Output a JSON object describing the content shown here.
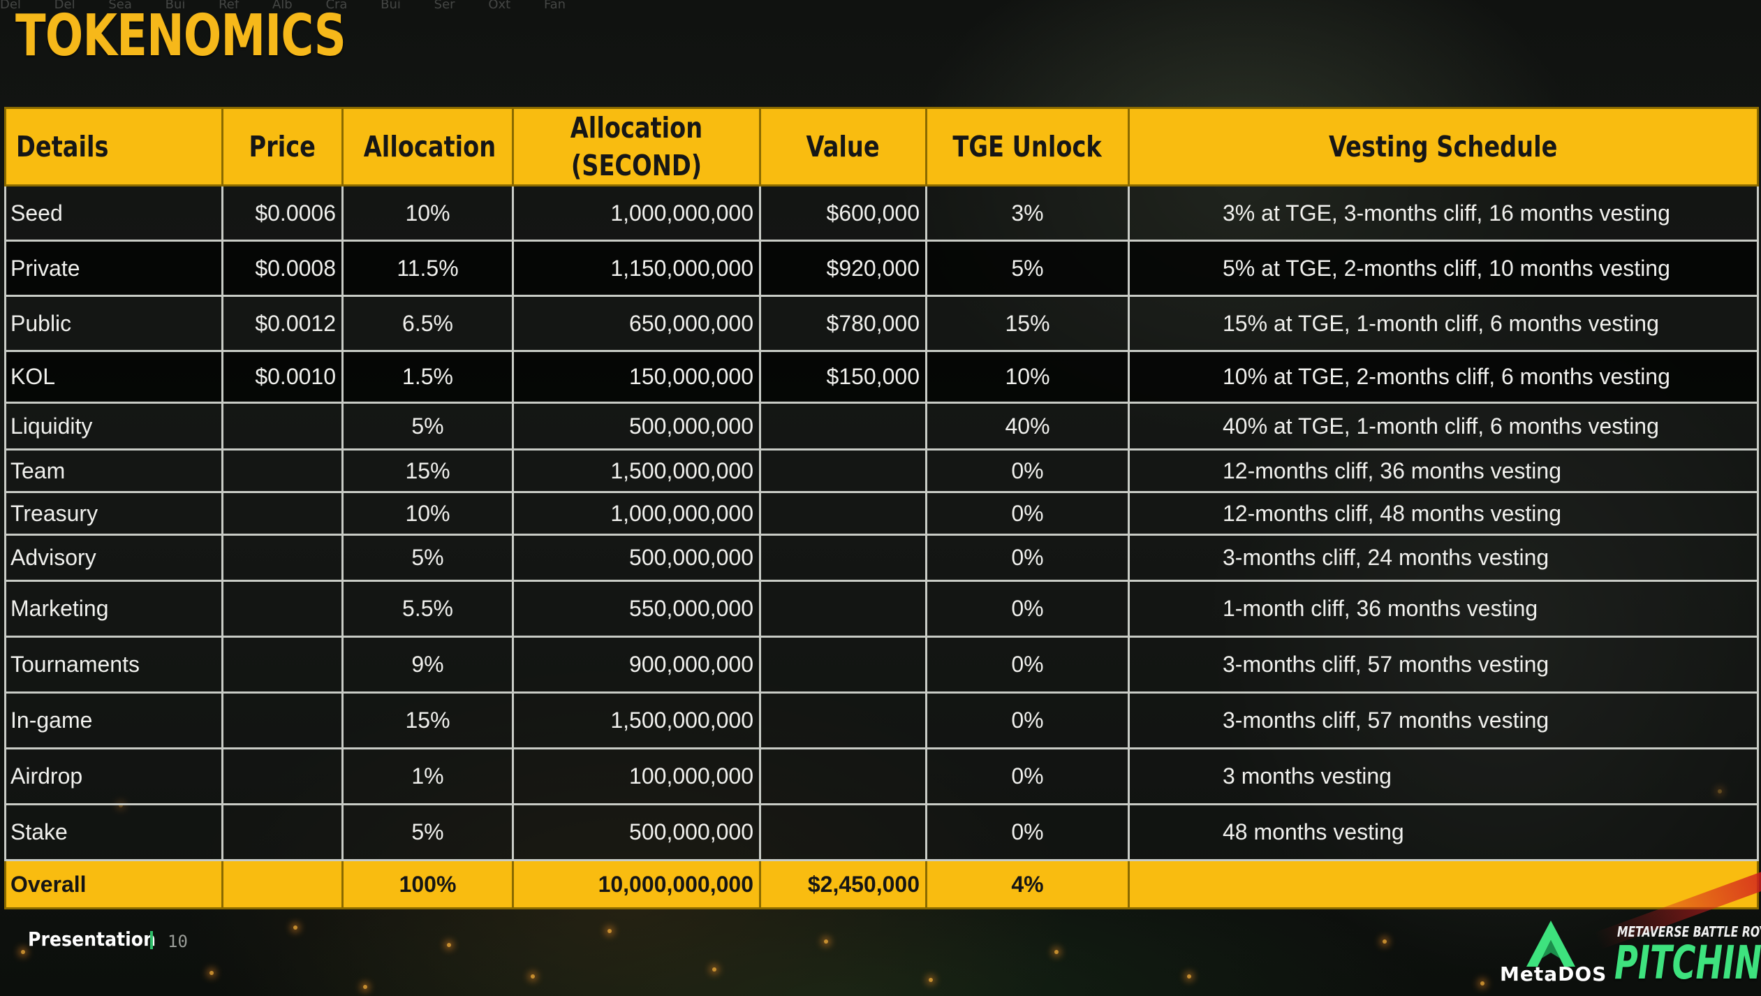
{
  "slide": {
    "title": "TOKENOMICS",
    "toolbar_ghost": [
      "Del",
      "Del",
      "Sea",
      "Bui",
      "Ref",
      "Alb",
      "Cra",
      "Bui",
      "Ser",
      "Oxt",
      "Fan"
    ]
  },
  "table": {
    "headers": {
      "details": "Details",
      "price": "Price",
      "allocation": "Allocation",
      "allocation_second": "Allocation (SECOND)",
      "value": "Value",
      "tge_unlock": "TGE Unlock",
      "vesting_schedule": "Vesting Schedule"
    },
    "rows": [
      {
        "details": "Seed",
        "price": "$0.0006",
        "allocation": "10%",
        "allocation_second": "1,000,000,000",
        "value": "$600,000",
        "tge_unlock": "3%",
        "vesting_schedule": "3% at TGE, 3-months cliff, 16 months vesting"
      },
      {
        "details": "Private",
        "price": "$0.0008",
        "allocation": "11.5%",
        "allocation_second": "1,150,000,000",
        "value": "$920,000",
        "tge_unlock": "5%",
        "vesting_schedule": "5% at TGE, 2-months cliff, 10 months vesting"
      },
      {
        "details": "Public",
        "price": "$0.0012",
        "allocation": "6.5%",
        "allocation_second": "650,000,000",
        "value": "$780,000",
        "tge_unlock": "15%",
        "vesting_schedule": "15% at TGE, 1-month cliff, 6 months vesting"
      },
      {
        "details": "KOL",
        "price": "$0.0010",
        "allocation": "1.5%",
        "allocation_second": "150,000,000",
        "value": "$150,000",
        "tge_unlock": "10%",
        "vesting_schedule": "10% at TGE, 2-months cliff, 6 months vesting"
      },
      {
        "details": "Liquidity",
        "price": "",
        "allocation": "5%",
        "allocation_second": "500,000,000",
        "value": "",
        "tge_unlock": "40%",
        "vesting_schedule": "40% at TGE, 1-month cliff, 6 months vesting"
      },
      {
        "details": "Team",
        "price": "",
        "allocation": "15%",
        "allocation_second": "1,500,000,000",
        "value": "",
        "tge_unlock": "0%",
        "vesting_schedule": "12-months cliff, 36 months vesting"
      },
      {
        "details": "Treasury",
        "price": "",
        "allocation": "10%",
        "allocation_second": "1,000,000,000",
        "value": "",
        "tge_unlock": "0%",
        "vesting_schedule": "12-months cliff, 48 months vesting"
      },
      {
        "details": "Advisory",
        "price": "",
        "allocation": "5%",
        "allocation_second": "500,000,000",
        "value": "",
        "tge_unlock": "0%",
        "vesting_schedule": "3-months cliff, 24 months vesting"
      },
      {
        "details": "Marketing",
        "price": "",
        "allocation": "5.5%",
        "allocation_second": "550,000,000",
        "value": "",
        "tge_unlock": "0%",
        "vesting_schedule": "1-month cliff, 36 months vesting"
      },
      {
        "details": "Tournaments",
        "price": "",
        "allocation": "9%",
        "allocation_second": "900,000,000",
        "value": "",
        "tge_unlock": "0%",
        "vesting_schedule": "3-months cliff, 57 months vesting"
      },
      {
        "details": "In-game",
        "price": "",
        "allocation": "15%",
        "allocation_second": "1,500,000,000",
        "value": "",
        "tge_unlock": "0%",
        "vesting_schedule": "3-months cliff, 57 months vesting"
      },
      {
        "details": "Airdrop",
        "price": "",
        "allocation": "1%",
        "allocation_second": "100,000,000",
        "value": "",
        "tge_unlock": "0%",
        "vesting_schedule": "3 months vesting"
      },
      {
        "details": "Stake",
        "price": "",
        "allocation": "5%",
        "allocation_second": "500,000,000",
        "value": "",
        "tge_unlock": "0%",
        "vesting_schedule": "48 months vesting"
      }
    ],
    "overall": {
      "details": "Overall",
      "price": "",
      "allocation": "100%",
      "allocation_second": "10,000,000,000",
      "value": "$2,450,000",
      "tge_unlock": "4%",
      "vesting_schedule": ""
    }
  },
  "footer": {
    "label": "Presentation",
    "page": "10",
    "logo_text": "MetaDOS",
    "logo_icon": "metados-logo-icon",
    "tagline": "METAVERSE BATTLE ROYALE",
    "pitching": "PITCHING"
  },
  "colors": {
    "accent": "#f9bc10",
    "title": "#f6b81a",
    "pitching": "#3ee27e",
    "footer_bar": "#2fbf6a"
  }
}
